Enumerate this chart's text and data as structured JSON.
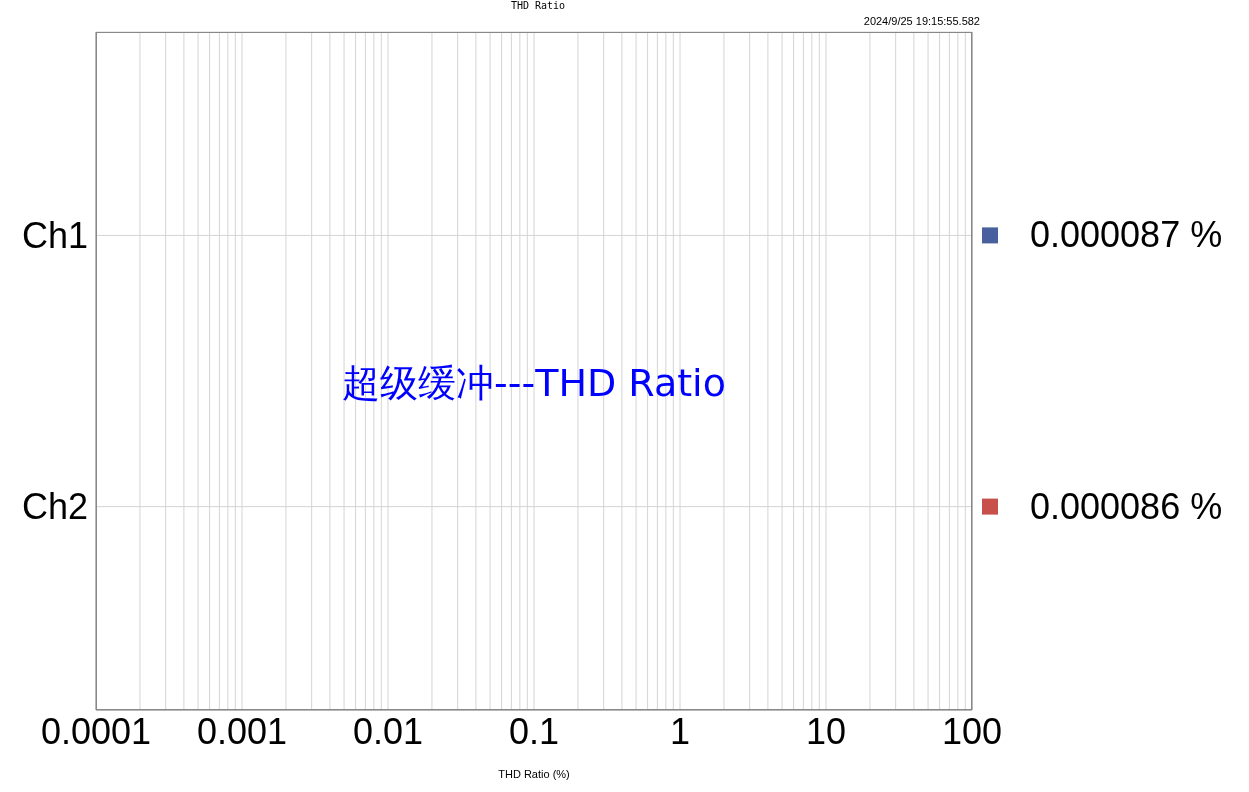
{
  "chart_data": {
    "type": "bar",
    "orientation": "horizontal",
    "title": "THD Ratio",
    "xlabel": "THD Ratio (%)",
    "annotations": [
      "2024/9/25 19:15:55.582",
      "超级缓冲---THD Ratio"
    ],
    "categories": [
      "Ch1",
      "Ch2"
    ],
    "values": [
      null,
      null
    ],
    "colors": [
      "#48609e",
      "#c8504a"
    ],
    "value_labels": [
      "0.000087 %",
      "0.000086 %"
    ],
    "log": "x",
    "grid": true,
    "xlim": [
      0.0001,
      100
    ],
    "xticks": [
      0.0001,
      {
        "value": 0.0002,
        "label": null
      },
      {
        "value": 0.0003,
        "label": null
      },
      {
        "value": 0.0004,
        "label": null
      },
      {
        "value": 0.0005,
        "label": null
      },
      {
        "value": 0.0006,
        "label": null
      },
      {
        "value": 0.0007,
        "label": null
      },
      {
        "value": 0.0008,
        "label": null
      },
      {
        "value": 0.0009,
        "label": null
      },
      0.001,
      {
        "value": 0.002,
        "label": null
      },
      {
        "value": 0.003,
        "label": null
      },
      {
        "value": 0.004,
        "label": null
      },
      {
        "value": 0.005,
        "label": null
      },
      {
        "value": 0.006,
        "label": null
      },
      {
        "value": 0.007,
        "label": null
      },
      {
        "value": 0.008,
        "label": null
      },
      {
        "value": 0.009,
        "label": null
      },
      0.01,
      {
        "value": 0.02,
        "label": null
      },
      {
        "value": 0.03,
        "label": null
      },
      {
        "value": 0.04,
        "label": null
      },
      {
        "value": 0.05,
        "label": null
      },
      {
        "value": 0.06,
        "label": null
      },
      {
        "value": 0.07,
        "label": null
      },
      {
        "value": 0.08,
        "label": null
      },
      {
        "value": 0.09,
        "label": null
      },
      0.1,
      {
        "value": 0.2,
        "label": null
      },
      {
        "value": 0.3,
        "label": null
      },
      {
        "value": 0.4,
        "label": null
      },
      {
        "value": 0.5,
        "label": null
      },
      {
        "value": 0.6,
        "label": null
      },
      {
        "value": 0.7,
        "label": null
      },
      {
        "value": 0.8,
        "label": null
      },
      {
        "value": 0.9,
        "label": null
      },
      1,
      {
        "value": 2,
        "label": null
      },
      {
        "value": 3,
        "label": null
      },
      {
        "value": 4,
        "label": null
      },
      {
        "value": 5,
        "label": null
      },
      {
        "value": 6,
        "label": null
      },
      {
        "value": 7,
        "label": null
      },
      {
        "value": 8,
        "label": null
      },
      {
        "value": 9,
        "label": null
      },
      10,
      {
        "value": 20,
        "label": null
      },
      {
        "value": 30,
        "label": null
      },
      {
        "value": 40,
        "label": null
      },
      {
        "value": 50,
        "label": null
      },
      {
        "value": 60,
        "label": null
      },
      {
        "value": 70,
        "label": null
      },
      {
        "value": 80,
        "label": null
      },
      {
        "value": 90,
        "label": null
      },
      100
    ]
  }
}
